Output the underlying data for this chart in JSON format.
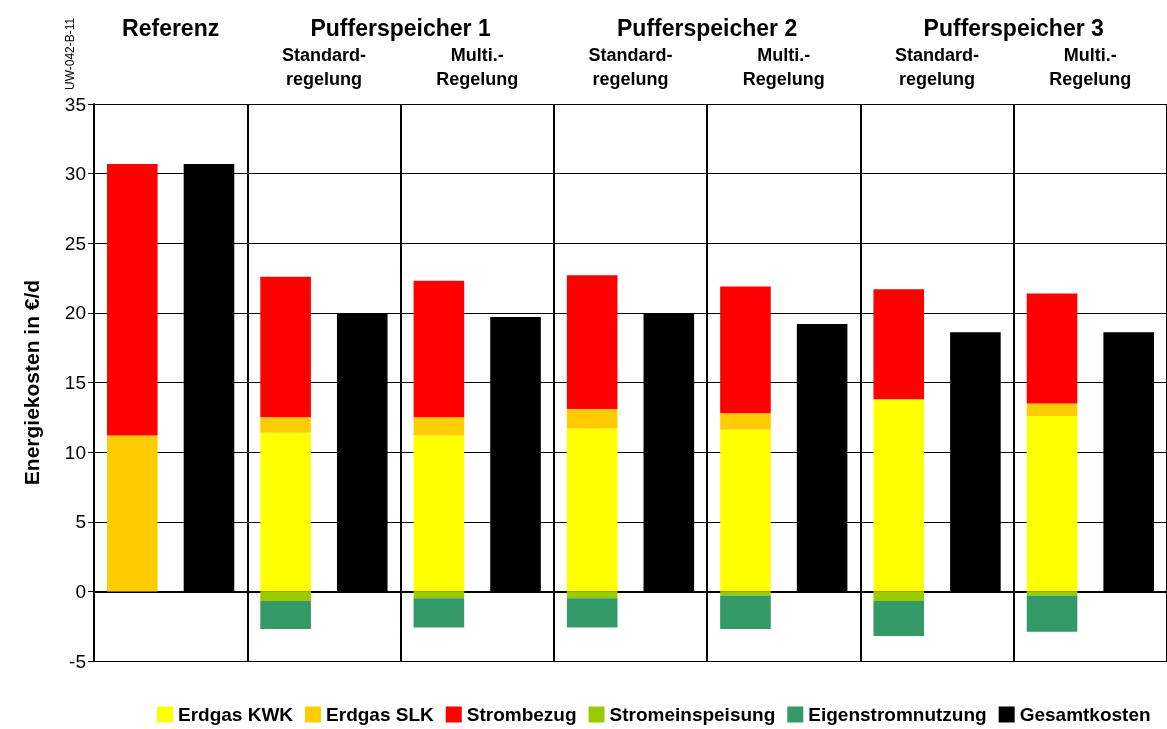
{
  "chart_data": {
    "type": "bar",
    "stacked": true,
    "ylabel": "Energiekosten in €/d",
    "categories": [
      null,
      null,
      null,
      null,
      null,
      null,
      null,
      null,
      null,
      null,
      null,
      null,
      null,
      null
    ],
    "series": [
      {
        "name": "Erdgas KWK",
        "color": "#ffff00",
        "values": [
          null,
          null,
          11.4,
          null,
          11.2,
          null,
          11.7,
          null,
          11.6,
          null,
          13.8,
          null,
          12.6,
          null
        ]
      },
      {
        "name": "Erdgas SLK",
        "color": "#ffcc00",
        "values": [
          11.2,
          null,
          1.1,
          null,
          1.3,
          null,
          1.4,
          null,
          1.2,
          null,
          null,
          null,
          0.9,
          null
        ]
      },
      {
        "name": "Strombezug",
        "color": "#ff0000",
        "values": [
          19.5,
          null,
          10.1,
          null,
          9.8,
          null,
          9.6,
          null,
          9.1,
          null,
          7.9,
          null,
          7.9,
          null
        ]
      },
      {
        "name": "Stromeinspeisung",
        "color": "#99cc00",
        "values": [
          null,
          null,
          -0.7,
          null,
          -0.5,
          null,
          -0.5,
          null,
          -0.3,
          null,
          -0.7,
          null,
          -0.3,
          null
        ]
      },
      {
        "name": "Eigenstromnutzung",
        "color": "#339966",
        "values": [
          null,
          null,
          -2.0,
          null,
          -2.1,
          null,
          -2.1,
          null,
          -2.4,
          null,
          -2.5,
          null,
          -2.6,
          null
        ]
      },
      {
        "name": "Gesamtkosten",
        "color": "#000000",
        "values": [
          null,
          30.7,
          null,
          20.0,
          null,
          19.7,
          null,
          20.0,
          null,
          19.2,
          null,
          18.6,
          null,
          18.6
        ]
      }
    ],
    "ylim": [
      -5,
      35
    ],
    "yticks": [
      -5,
      0,
      5,
      10,
      15,
      20,
      25,
      30,
      35
    ],
    "grid": "y",
    "legend": "bottom",
    "annotations": [
      "UW-042-B-11",
      "Referenz",
      "Pufferspeicher 1",
      "Standard-\nregelung",
      "Multi.-\nRegelung",
      "Pufferspeicher 2",
      "Standard-\nregelung",
      "Multi.-\nRegelung",
      "Pufferspeicher 3",
      "Standard-\nregelung",
      "Multi.-\nRegelung"
    ]
  }
}
